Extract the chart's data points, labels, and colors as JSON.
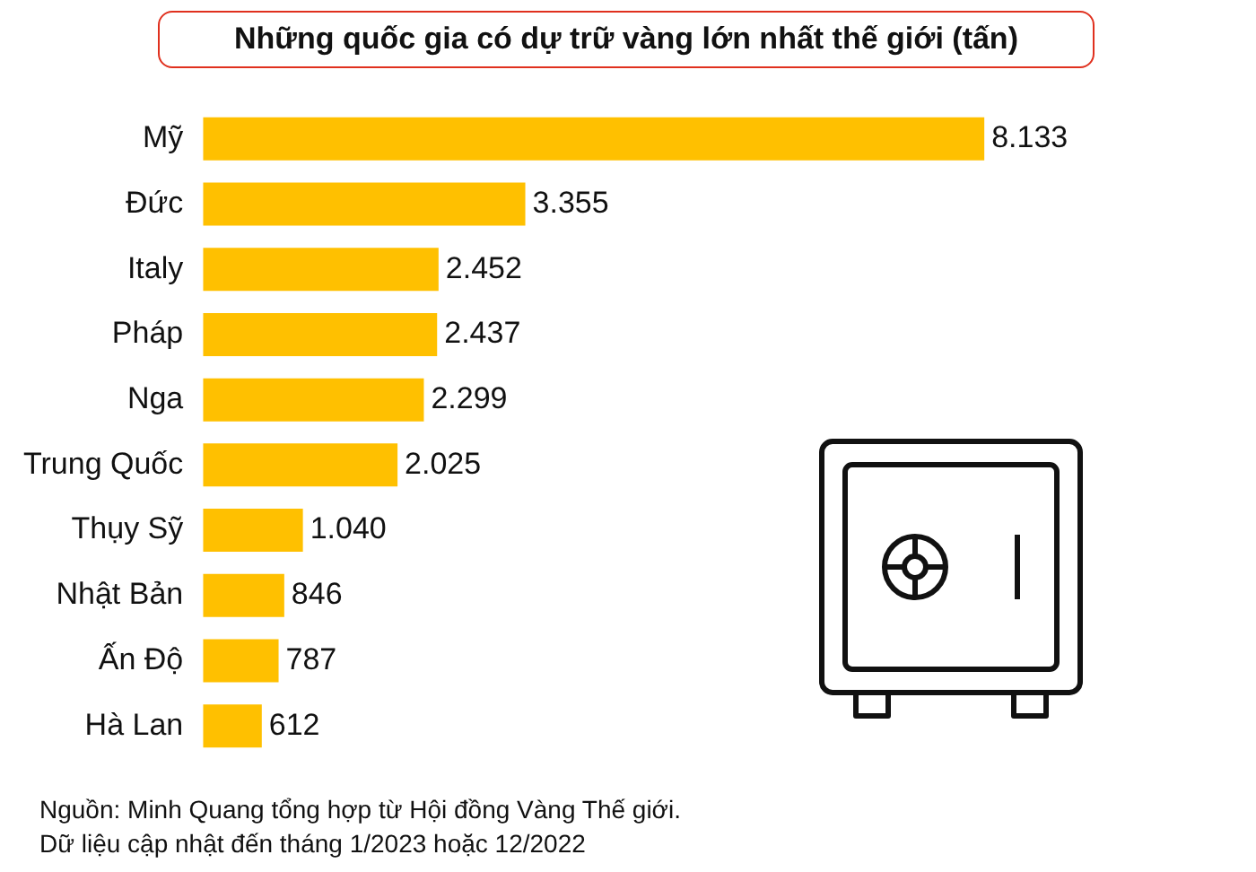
{
  "chart_data": {
    "type": "bar",
    "orientation": "horizontal",
    "title": "Những quốc gia có dự trữ vàng lớn nhất thế giới (tấn)",
    "categories": [
      "Mỹ",
      "Đức",
      "Italy",
      "Pháp",
      "Nga",
      "Trung Quốc",
      "Thụy Sỹ",
      "Nhật Bản",
      "Ấn Độ",
      "Hà Lan"
    ],
    "values": [
      8133,
      3355,
      2452,
      2437,
      2299,
      2025,
      1040,
      846,
      787,
      612
    ],
    "value_labels": [
      "8.133",
      "3.355",
      "2.452",
      "2.437",
      "2.299",
      "2.025",
      "1.040",
      "846",
      "787",
      "612"
    ],
    "color": "#ffc000",
    "legend": false,
    "tick_labels": "y",
    "annotations": [
      "Nguồn: Minh Quang tổng hợp từ Hội đồng Vàng Thế giới.",
      "Dữ liệu cập nhật đến tháng 1/2023 hoặc 12/2022"
    ]
  }
}
